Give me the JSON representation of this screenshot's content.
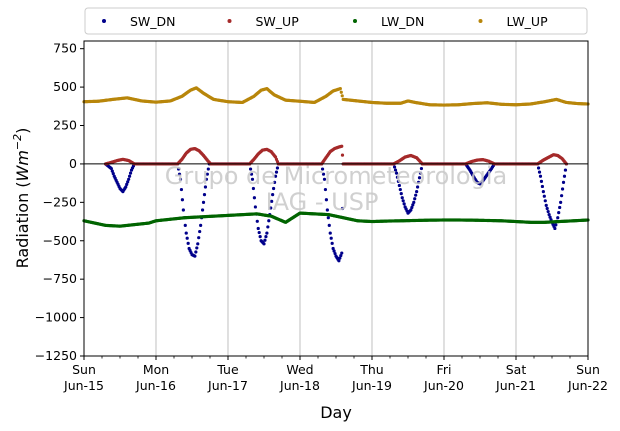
{
  "chart_data": {
    "type": "scatter",
    "title": "",
    "xlabel": "Day",
    "ylabel_main": "Radiation (",
    "ylabel_unit": "Wm",
    "ylabel_exp": "−2",
    "ylabel_close": ")",
    "ylim": [
      -1250,
      800
    ],
    "xlim_days": [
      0,
      7
    ],
    "y_ticks": [
      {
        "value": 750,
        "label": "750"
      },
      {
        "value": 500,
        "label": "500"
      },
      {
        "value": 250,
        "label": "250"
      },
      {
        "value": 0,
        "label": "0"
      },
      {
        "value": -250,
        "label": "−250"
      },
      {
        "value": -500,
        "label": "−500"
      },
      {
        "value": -750,
        "label": "−750"
      },
      {
        "value": -1000,
        "label": "−1000"
      },
      {
        "value": -1250,
        "label": "−1250"
      }
    ],
    "x_ticks": [
      {
        "day": 0,
        "weekday": "Sun",
        "date": "Jun-15"
      },
      {
        "day": 1,
        "weekday": "Mon",
        "date": "Jun-16"
      },
      {
        "day": 2,
        "weekday": "Tue",
        "date": "Jun-17"
      },
      {
        "day": 3,
        "weekday": "Wed",
        "date": "Jun-18"
      },
      {
        "day": 4,
        "weekday": "Thu",
        "date": "Jun-19"
      },
      {
        "day": 5,
        "weekday": "Fri",
        "date": "Jun-20"
      },
      {
        "day": 6,
        "weekday": "Sat",
        "date": "Jun-21"
      },
      {
        "day": 7,
        "weekday": "Sun",
        "date": "Jun-22"
      }
    ],
    "grid": "vertical",
    "zero_line": true,
    "legend_position": "top",
    "watermark": [
      "Grupo de Micrometeorologia",
      "IAG - USP"
    ],
    "series": [
      {
        "name": "SW_DN",
        "color": "#00008b",
        "points": [
          [
            0.3,
            0
          ],
          [
            0.38,
            -30
          ],
          [
            0.42,
            -80
          ],
          [
            0.46,
            -120
          ],
          [
            0.5,
            -160
          ],
          [
            0.54,
            -180
          ],
          [
            0.58,
            -150
          ],
          [
            0.62,
            -100
          ],
          [
            0.66,
            -40
          ],
          [
            0.7,
            0
          ],
          [
            1.3,
            0
          ],
          [
            1.34,
            -100
          ],
          [
            1.38,
            -300
          ],
          [
            1.42,
            -450
          ],
          [
            1.46,
            -550
          ],
          [
            1.5,
            -590
          ],
          [
            1.54,
            -600
          ],
          [
            1.58,
            -520
          ],
          [
            1.62,
            -400
          ],
          [
            1.66,
            -250
          ],
          [
            1.7,
            -100
          ],
          [
            1.74,
            0
          ],
          [
            2.3,
            0
          ],
          [
            2.34,
            -100
          ],
          [
            2.38,
            -280
          ],
          [
            2.42,
            -420
          ],
          [
            2.46,
            -500
          ],
          [
            2.5,
            -520
          ],
          [
            2.54,
            -450
          ],
          [
            2.58,
            -330
          ],
          [
            2.62,
            -200
          ],
          [
            2.66,
            -80
          ],
          [
            2.7,
            0
          ],
          [
            3.3,
            0
          ],
          [
            3.34,
            -100
          ],
          [
            3.38,
            -300
          ],
          [
            3.42,
            -450
          ],
          [
            3.46,
            -550
          ],
          [
            3.5,
            -600
          ],
          [
            3.54,
            -630
          ],
          [
            3.58,
            -580
          ],
          [
            3.6,
            0
          ],
          [
            4.3,
            0
          ],
          [
            4.34,
            -60
          ],
          [
            4.38,
            -140
          ],
          [
            4.42,
            -220
          ],
          [
            4.46,
            -280
          ],
          [
            4.5,
            -320
          ],
          [
            4.54,
            -300
          ],
          [
            4.58,
            -250
          ],
          [
            4.62,
            -180
          ],
          [
            4.66,
            -90
          ],
          [
            4.7,
            0
          ],
          [
            5.3,
            0
          ],
          [
            5.36,
            -40
          ],
          [
            5.42,
            -90
          ],
          [
            5.46,
            -120
          ],
          [
            5.5,
            -130
          ],
          [
            5.54,
            -110
          ],
          [
            5.6,
            -70
          ],
          [
            5.66,
            -30
          ],
          [
            5.7,
            0
          ],
          [
            6.3,
            0
          ],
          [
            6.34,
            -80
          ],
          [
            6.38,
            -180
          ],
          [
            6.42,
            -270
          ],
          [
            6.46,
            -330
          ],
          [
            6.5,
            -380
          ],
          [
            6.54,
            -420
          ],
          [
            6.58,
            -350
          ],
          [
            6.62,
            -250
          ],
          [
            6.66,
            -120
          ],
          [
            6.7,
            0
          ]
        ]
      },
      {
        "name": "SW_UP",
        "color": "#a52a2a",
        "points": [
          [
            0.3,
            0
          ],
          [
            0.38,
            10
          ],
          [
            0.46,
            22
          ],
          [
            0.54,
            30
          ],
          [
            0.62,
            22
          ],
          [
            0.7,
            0
          ],
          [
            1.3,
            0
          ],
          [
            1.36,
            30
          ],
          [
            1.42,
            70
          ],
          [
            1.48,
            95
          ],
          [
            1.54,
            100
          ],
          [
            1.6,
            85
          ],
          [
            1.66,
            55
          ],
          [
            1.72,
            20
          ],
          [
            1.76,
            0
          ],
          [
            2.3,
            0
          ],
          [
            2.36,
            30
          ],
          [
            2.42,
            65
          ],
          [
            2.48,
            90
          ],
          [
            2.54,
            95
          ],
          [
            2.6,
            80
          ],
          [
            2.66,
            45
          ],
          [
            2.7,
            0
          ],
          [
            3.3,
            0
          ],
          [
            3.36,
            40
          ],
          [
            3.42,
            80
          ],
          [
            3.48,
            100
          ],
          [
            3.54,
            110
          ],
          [
            3.58,
            115
          ],
          [
            3.6,
            0
          ],
          [
            4.3,
            0
          ],
          [
            4.38,
            20
          ],
          [
            4.46,
            45
          ],
          [
            4.54,
            55
          ],
          [
            4.62,
            40
          ],
          [
            4.7,
            0
          ],
          [
            5.3,
            0
          ],
          [
            5.38,
            15
          ],
          [
            5.46,
            25
          ],
          [
            5.54,
            28
          ],
          [
            5.62,
            18
          ],
          [
            5.7,
            0
          ],
          [
            6.3,
            0
          ],
          [
            6.38,
            25
          ],
          [
            6.46,
            45
          ],
          [
            6.52,
            60
          ],
          [
            6.58,
            55
          ],
          [
            6.64,
            35
          ],
          [
            6.7,
            0
          ]
        ]
      },
      {
        "name": "LW_DN",
        "color": "#006400",
        "points": [
          [
            0,
            -370
          ],
          [
            0.1,
            -380
          ],
          [
            0.2,
            -390
          ],
          [
            0.3,
            -400
          ],
          [
            0.5,
            -405
          ],
          [
            0.7,
            -395
          ],
          [
            0.9,
            -385
          ],
          [
            1.0,
            -370
          ],
          [
            1.2,
            -360
          ],
          [
            1.4,
            -350
          ],
          [
            1.6,
            -345
          ],
          [
            1.8,
            -340
          ],
          [
            2.0,
            -335
          ],
          [
            2.2,
            -330
          ],
          [
            2.4,
            -325
          ],
          [
            2.6,
            -340
          ],
          [
            2.8,
            -380
          ],
          [
            3.0,
            -320
          ],
          [
            3.2,
            -325
          ],
          [
            3.4,
            -330
          ],
          [
            3.6,
            -350
          ],
          [
            3.8,
            -370
          ],
          [
            4.0,
            -375
          ],
          [
            4.2,
            -372
          ],
          [
            4.4,
            -370
          ],
          [
            4.6,
            -368
          ],
          [
            4.8,
            -366
          ],
          [
            5.0,
            -365
          ],
          [
            5.2,
            -365
          ],
          [
            5.4,
            -366
          ],
          [
            5.6,
            -368
          ],
          [
            5.8,
            -370
          ],
          [
            6.0,
            -375
          ],
          [
            6.2,
            -380
          ],
          [
            6.4,
            -380
          ],
          [
            6.6,
            -375
          ],
          [
            6.8,
            -370
          ],
          [
            7.0,
            -365
          ]
        ]
      },
      {
        "name": "LW_UP",
        "color": "#b8860b",
        "points": [
          [
            0,
            405
          ],
          [
            0.2,
            408
          ],
          [
            0.4,
            420
          ],
          [
            0.6,
            430
          ],
          [
            0.8,
            410
          ],
          [
            1.0,
            402
          ],
          [
            1.2,
            410
          ],
          [
            1.36,
            440
          ],
          [
            1.48,
            480
          ],
          [
            1.56,
            495
          ],
          [
            1.66,
            460
          ],
          [
            1.8,
            420
          ],
          [
            2.0,
            405
          ],
          [
            2.2,
            400
          ],
          [
            2.36,
            440
          ],
          [
            2.46,
            480
          ],
          [
            2.54,
            490
          ],
          [
            2.64,
            450
          ],
          [
            2.8,
            415
          ],
          [
            3.0,
            408
          ],
          [
            3.2,
            400
          ],
          [
            3.36,
            440
          ],
          [
            3.46,
            475
          ],
          [
            3.56,
            490
          ],
          [
            3.6,
            420
          ],
          [
            3.8,
            410
          ],
          [
            4.0,
            400
          ],
          [
            4.2,
            395
          ],
          [
            4.4,
            395
          ],
          [
            4.5,
            410
          ],
          [
            4.6,
            400
          ],
          [
            4.8,
            385
          ],
          [
            5.0,
            383
          ],
          [
            5.2,
            385
          ],
          [
            5.4,
            393
          ],
          [
            5.6,
            398
          ],
          [
            5.8,
            388
          ],
          [
            6.0,
            385
          ],
          [
            6.2,
            390
          ],
          [
            6.4,
            405
          ],
          [
            6.56,
            420
          ],
          [
            6.7,
            400
          ],
          [
            6.85,
            393
          ],
          [
            7.0,
            390
          ]
        ]
      }
    ]
  }
}
